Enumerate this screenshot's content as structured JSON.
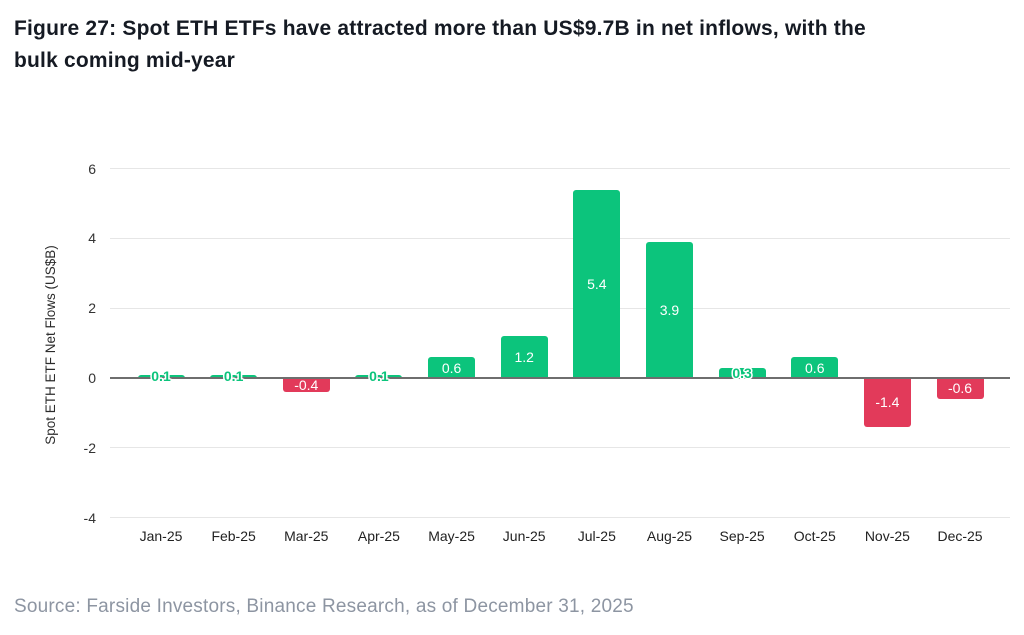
{
  "header": {
    "title_line1": "Figure 27: Spot ETH ETFs have attracted more than US$9.7B in net inflows, with the",
    "title_line2": "bulk coming mid-year"
  },
  "footer": {
    "source": "Source: Farside Investors, Binance Research, as of December 31, 2025"
  },
  "colors": {
    "positive_bar": "#0cc47c",
    "negative_bar": "#e23a5a"
  },
  "chart_data": {
    "type": "bar",
    "title": "Figure 27: Spot ETH ETFs have attracted more than US$9.7B in net inflows, with the bulk coming mid-year",
    "categories": [
      "Jan-25",
      "Feb-25",
      "Mar-25",
      "Apr-25",
      "May-25",
      "Jun-25",
      "Jul-25",
      "Aug-25",
      "Sep-25",
      "Oct-25",
      "Nov-25",
      "Dec-25"
    ],
    "values": [
      0.1,
      0.1,
      -0.4,
      0.1,
      0.6,
      1.2,
      5.4,
      3.9,
      0.3,
      0.6,
      -1.4,
      -0.6
    ],
    "bar_labels": [
      "0.1",
      "0.1",
      "-0.4",
      "0.1",
      "0.6",
      "1.2",
      "5.4",
      "3.9",
      "0.3",
      "0.6",
      "-1.4",
      "-0.6"
    ],
    "xlabel": "",
    "ylabel": "Spot ETH ETF Net Flows (US$B)",
    "yticks": [
      6,
      4,
      2,
      0,
      -2,
      -4
    ],
    "ylim": [
      -4,
      6
    ],
    "grid": true,
    "legend": "none"
  }
}
